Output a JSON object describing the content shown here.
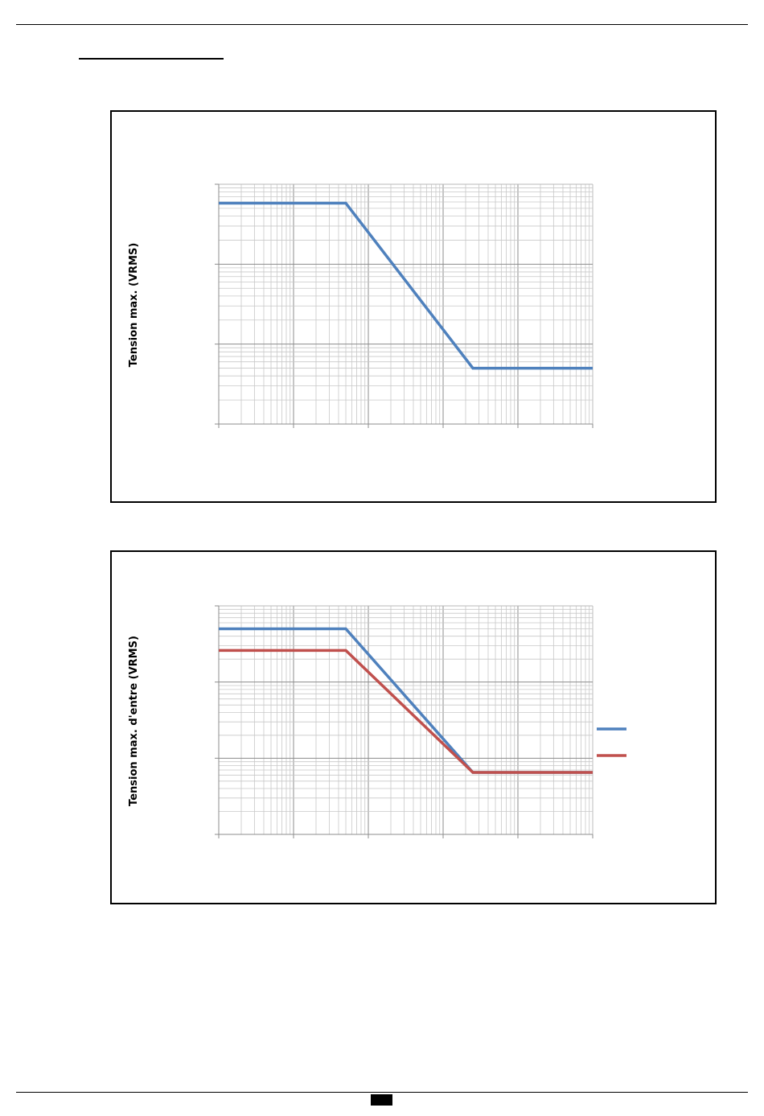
{
  "chart_data": [
    {
      "type": "line",
      "title": "",
      "xlabel": "",
      "ylabel": "Tension max. (VRMS)",
      "x_scale": "log",
      "y_scale": "log",
      "xlim": [
        1,
        100000
      ],
      "ylim": [
        1,
        1000
      ],
      "grid": true,
      "tick_labels_visible": false,
      "series": [
        {
          "color": "#4f81bd",
          "x": [
            1,
            50,
            2500,
            100000
          ],
          "y": [
            580,
            580,
            5,
            5
          ]
        }
      ]
    },
    {
      "type": "line",
      "title": "",
      "xlabel": "",
      "ylabel": "Tension max. d'entre (VRMS)",
      "x_scale": "log",
      "y_scale": "log",
      "xlim": [
        1,
        100000
      ],
      "ylim": [
        1,
        1000
      ],
      "grid": true,
      "tick_labels_visible": false,
      "legend": "right",
      "series": [
        {
          "color": "#4f81bd",
          "x": [
            1,
            50,
            2500,
            100000
          ],
          "y": [
            500,
            500,
            6.5,
            6.5
          ]
        },
        {
          "color": "#c0504d",
          "x": [
            1,
            50,
            2500,
            100000
          ],
          "y": [
            260,
            260,
            6.5,
            6.5
          ]
        }
      ]
    }
  ]
}
